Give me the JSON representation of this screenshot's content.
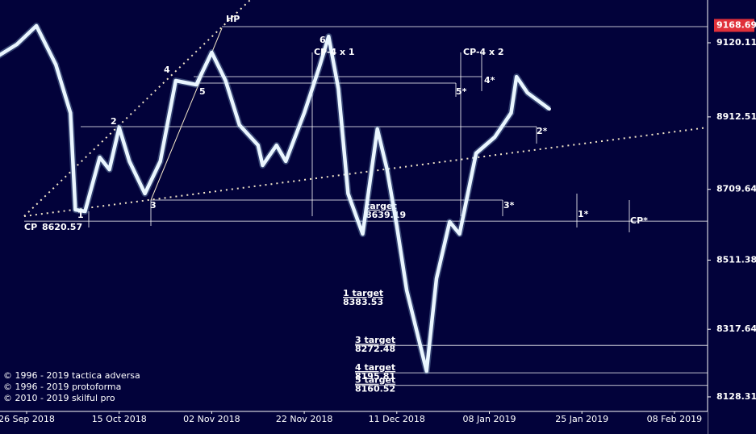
{
  "chart_data": {
    "type": "line",
    "series": [
      {
        "color": "#eaf6ff",
        "x": [
          "2018-09-20",
          "2018-09-24",
          "2018-09-28",
          "2018-10-02",
          "2018-10-05",
          "2018-10-06",
          "2018-10-08",
          "2018-10-11",
          "2018-10-13",
          "2018-10-15",
          "2018-10-17",
          "2018-10-20",
          "2018-10-23",
          "2018-10-26",
          "2018-10-30",
          "2018-11-02",
          "2018-11-05",
          "2018-11-08",
          "2018-11-12",
          "2018-11-13",
          "2018-11-16",
          "2018-11-18",
          "2018-11-22",
          "2018-11-25",
          "2018-11-27",
          "2018-11-29",
          "2018-12-01",
          "2018-12-04",
          "2018-12-07",
          "2018-12-09",
          "2018-12-11",
          "2018-12-14",
          "2018-12-20",
          "2018-12-23",
          "2018-12-27",
          "2018-12-30",
          "2019-01-04",
          "2019-01-09",
          "2019-01-12",
          "2019-01-13",
          "2019-01-15",
          "2019-01-17",
          "2019-01-19"
        ],
        "values": [
          9081.7,
          9115.6,
          9167.6,
          9059,
          8923.5,
          8652.4,
          8648,
          8799,
          8765,
          8882.9,
          8788,
          8697.6,
          8788,
          9014,
          9002.6,
          9093,
          9014,
          8889.7,
          8833.2,
          8776.7,
          8833,
          8788,
          8923.5,
          9047.8,
          9138,
          8991.3,
          8697.6,
          8584.6,
          8878.4,
          8765.4,
          8607.2,
          8426.5,
          8200.5,
          8460,
          8618.5,
          8584.6,
          8810.6,
          8855.8,
          8923.5,
          9025,
          8980,
          8957.5,
          8934.9
        ]
      }
    ],
    "ylim": [
      8087.6,
      9239.9
    ],
    "yticks": [
      8128.31,
      8317.64,
      8511.38,
      8709.64,
      8912.51,
      9120.11
    ],
    "xticks": [
      {
        "value": "2018-09-26",
        "label": "26 Sep 2018"
      },
      {
        "value": "2018-10-15",
        "label": "15 Oct 2018"
      },
      {
        "value": "2018-11-02",
        "label": "02 Nov 2018"
      },
      {
        "value": "2018-11-22",
        "label": "22 Nov 2018"
      },
      {
        "value": "2018-12-11",
        "label": "11 Dec 2018"
      },
      {
        "value": "2019-01-08",
        "label": "08 Jan 2019"
      },
      {
        "value": "2019-01-25",
        "label": "25 Jan 2019"
      },
      {
        "value": "2019-02-08",
        "label": "08 Feb 2019"
      }
    ],
    "last_price": 9168.69,
    "last_price_color": "#e0303a",
    "cp": {
      "text": "CP",
      "value": 8620.57
    },
    "targets": [
      {
        "text": "target",
        "value": 8639.19
      },
      {
        "text": "1 target",
        "value": 8383.53
      },
      {
        "text": "3 target",
        "value": 8272.48
      },
      {
        "text": "4 target",
        "value": 8195.81
      },
      {
        "text": "5 target",
        "value": 8160.52
      }
    ],
    "wave_labels": [
      "HP",
      "6",
      "CP-4 x 1",
      "CP-4 x 2",
      "4",
      "5",
      "2",
      "1",
      "3",
      "5*",
      "4*",
      "2*",
      "3*",
      "1*",
      "CP*"
    ],
    "copyright": [
      "© 1996 - 2019 tactica adversa",
      "© 1996 - 2019 protoforma",
      "© 2010 - 2019 skilful pro"
    ]
  }
}
